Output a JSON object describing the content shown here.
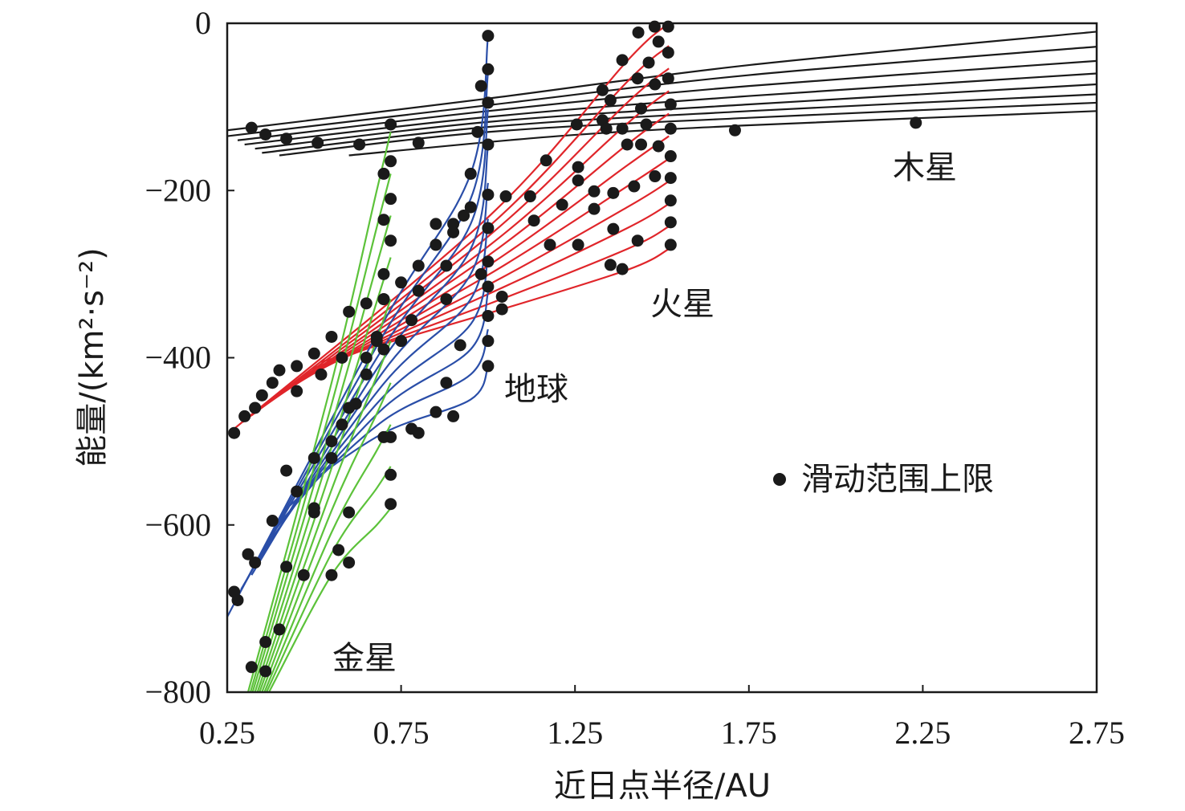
{
  "chart_data": {
    "type": "line",
    "title": "",
    "xlabel": "近日点半径/AU",
    "ylabel": "能量/(km²·s⁻²)",
    "xlim": [
      0.25,
      2.75
    ],
    "ylim": [
      -800,
      0
    ],
    "xticks": [
      0.25,
      0.75,
      1.25,
      1.75,
      2.25,
      2.75
    ],
    "xtick_labels": [
      "0.25",
      "0.75",
      "1.25",
      "1.75",
      "2.25",
      "2.75"
    ],
    "yticks": [
      0,
      -200,
      -400,
      -600,
      -800
    ],
    "ytick_labels": [
      "0",
      "−200",
      "−400",
      "−600",
      "−800"
    ],
    "grid": false,
    "legend": {
      "label": "滑动范围上限",
      "placement": "right",
      "marker_color": "#1a1a1a"
    },
    "annotations": {
      "jupiter": "木星",
      "mars": "火星",
      "earth": "地球",
      "venus": "金星"
    },
    "series": [
      {
        "name": "木星",
        "color": "#1a1a1a",
        "curves": [
          [
            [
              0.25,
              -128
            ],
            [
              1.0,
              -90
            ],
            [
              1.75,
              -50
            ],
            [
              2.75,
              -10
            ]
          ],
          [
            [
              0.25,
              -135
            ],
            [
              1.0,
              -98
            ],
            [
              1.75,
              -62
            ],
            [
              2.75,
              -28
            ]
          ],
          [
            [
              0.28,
              -140
            ],
            [
              1.0,
              -105
            ],
            [
              1.75,
              -75
            ],
            [
              2.75,
              -45
            ]
          ],
          [
            [
              0.3,
              -145
            ],
            [
              1.0,
              -112
            ],
            [
              1.75,
              -87
            ],
            [
              2.75,
              -60
            ]
          ],
          [
            [
              0.33,
              -150
            ],
            [
              1.0,
              -118
            ],
            [
              1.75,
              -97
            ],
            [
              2.75,
              -73
            ]
          ],
          [
            [
              0.35,
              -155
            ],
            [
              1.0,
              -124
            ],
            [
              1.75,
              -105
            ],
            [
              2.75,
              -85
            ]
          ],
          [
            [
              0.4,
              -158
            ],
            [
              1.0,
              -130
            ],
            [
              1.75,
              -113
            ],
            [
              2.75,
              -95
            ]
          ],
          [
            [
              0.6,
              -158
            ],
            [
              1.2,
              -135
            ],
            [
              1.75,
              -122
            ],
            [
              2.75,
              -105
            ]
          ]
        ]
      },
      {
        "name": "火星",
        "color": "#e0252a",
        "curves": [
          [
            [
              0.27,
              -485
            ],
            [
              1.0,
              -232
            ],
            [
              1.4,
              -45
            ],
            [
              1.52,
              0
            ]
          ],
          [
            [
              0.295,
              -477
            ],
            [
              1.0,
              -244
            ],
            [
              1.4,
              -70
            ],
            [
              1.52,
              -27
            ]
          ],
          [
            [
              0.32,
              -469
            ],
            [
              1.0,
              -255
            ],
            [
              1.4,
              -95
            ],
            [
              1.52,
              -54
            ]
          ],
          [
            [
              0.345,
              -461
            ],
            [
              1.0,
              -267
            ],
            [
              1.4,
              -120
            ],
            [
              1.52,
              -81
            ]
          ],
          [
            [
              0.37,
              -453
            ],
            [
              1.0,
              -278
            ],
            [
              1.4,
              -145
            ],
            [
              1.52,
              -108
            ]
          ],
          [
            [
              0.395,
              -445
            ],
            [
              1.0,
              -290
            ],
            [
              1.4,
              -170
            ],
            [
              1.52,
              -135
            ]
          ],
          [
            [
              0.42,
              -437
            ],
            [
              1.0,
              -301
            ],
            [
              1.4,
              -195
            ],
            [
              1.52,
              -162
            ]
          ],
          [
            [
              0.445,
              -429
            ],
            [
              1.0,
              -313
            ],
            [
              1.4,
              -220
            ],
            [
              1.52,
              -189
            ]
          ],
          [
            [
              0.47,
              -421
            ],
            [
              1.0,
              -324
            ],
            [
              1.4,
              -245
            ],
            [
              1.52,
              -216
            ]
          ],
          [
            [
              0.495,
              -413
            ],
            [
              1.0,
              -336
            ],
            [
              1.4,
              -270
            ],
            [
              1.52,
              -243
            ]
          ],
          [
            [
              0.52,
              -405
            ],
            [
              1.0,
              -347
            ],
            [
              1.4,
              -295
            ],
            [
              1.52,
              -270
            ]
          ]
        ]
      },
      {
        "name": "地球",
        "color": "#2a4ea8",
        "curves": [
          [
            [
              0.25,
              -710
            ],
            [
              0.7,
              -357
            ],
            [
              0.95,
              -180
            ],
            [
              1.0,
              -15
            ]
          ],
          [
            [
              0.27,
              -693
            ],
            [
              0.7,
              -372
            ],
            [
              0.95,
              -210
            ],
            [
              1.0,
              -59
            ]
          ],
          [
            [
              0.29,
              -677
            ],
            [
              0.7,
              -387
            ],
            [
              0.95,
              -240
            ],
            [
              1.0,
              -103
            ]
          ],
          [
            [
              0.32,
              -660
            ],
            [
              0.7,
              -401
            ],
            [
              0.95,
              -270
            ],
            [
              1.0,
              -147
            ]
          ],
          [
            [
              0.34,
              -643
            ],
            [
              0.7,
              -416
            ],
            [
              0.95,
              -300
            ],
            [
              1.0,
              -191
            ]
          ],
          [
            [
              0.36,
              -627
            ],
            [
              0.7,
              -431
            ],
            [
              0.95,
              -330
            ],
            [
              1.0,
              -234
            ]
          ],
          [
            [
              0.38,
              -610
            ],
            [
              0.7,
              -446
            ],
            [
              0.95,
              -360
            ],
            [
              1.0,
              -278
            ]
          ],
          [
            [
              0.41,
              -593
            ],
            [
              0.7,
              -460
            ],
            [
              0.95,
              -390
            ],
            [
              1.0,
              -322
            ]
          ],
          [
            [
              0.43,
              -577
            ],
            [
              0.7,
              -475
            ],
            [
              0.95,
              -420
            ],
            [
              1.0,
              -366
            ]
          ],
          [
            [
              0.45,
              -560
            ],
            [
              0.7,
              -490
            ],
            [
              0.95,
              -450
            ],
            [
              1.0,
              -410
            ]
          ]
        ]
      },
      {
        "name": "金星",
        "color": "#5cc23a",
        "curves": [
          [
            [
              0.31,
              -800
            ],
            [
              0.55,
              -430
            ],
            [
              0.68,
              -200
            ],
            [
              0.72,
              -130
            ]
          ],
          [
            [
              0.317,
              -800
            ],
            [
              0.55,
              -456
            ],
            [
              0.68,
              -244
            ],
            [
              0.72,
              -180
            ]
          ],
          [
            [
              0.323,
              -800
            ],
            [
              0.55,
              -481
            ],
            [
              0.68,
              -289
            ],
            [
              0.72,
              -230
            ]
          ],
          [
            [
              0.33,
              -800
            ],
            [
              0.55,
              -507
            ],
            [
              0.68,
              -333
            ],
            [
              0.72,
              -280
            ]
          ],
          [
            [
              0.337,
              -800
            ],
            [
              0.55,
              -532
            ],
            [
              0.68,
              -378
            ],
            [
              0.72,
              -330
            ]
          ],
          [
            [
              0.343,
              -800
            ],
            [
              0.55,
              -558
            ],
            [
              0.68,
              -422
            ],
            [
              0.72,
              -380
            ]
          ],
          [
            [
              0.35,
              -800
            ],
            [
              0.55,
              -583
            ],
            [
              0.68,
              -467
            ],
            [
              0.72,
              -430
            ]
          ],
          [
            [
              0.357,
              -800
            ],
            [
              0.55,
              -609
            ],
            [
              0.68,
              -511
            ],
            [
              0.72,
              -480
            ]
          ],
          [
            [
              0.363,
              -800
            ],
            [
              0.55,
              -634
            ],
            [
              0.68,
              -556
            ],
            [
              0.72,
              -530
            ]
          ],
          [
            [
              0.37,
              -800
            ],
            [
              0.55,
              -660
            ],
            [
              0.68,
              -600
            ],
            [
              0.72,
              -580
            ]
          ]
        ]
      }
    ],
    "points": [
      [
        0.32,
        -125
      ],
      [
        0.36,
        -133
      ],
      [
        0.42,
        -138
      ],
      [
        0.51,
        -143
      ],
      [
        0.63,
        -145
      ],
      [
        0.72,
        -121
      ],
      [
        0.8,
        -143
      ],
      [
        1.71,
        -128
      ],
      [
        2.23,
        -119
      ],
      [
        1.479,
        -4
      ],
      [
        1.518,
        -4
      ],
      [
        1.49,
        -22
      ],
      [
        1.518,
        -35
      ],
      [
        1.432,
        -11
      ],
      [
        1.386,
        -44
      ],
      [
        1.462,
        -47
      ],
      [
        1.518,
        -66
      ],
      [
        1.329,
        -80
      ],
      [
        1.43,
        -66
      ],
      [
        1.48,
        -73
      ],
      [
        1.352,
        -92
      ],
      [
        1.44,
        -102
      ],
      [
        1.525,
        -97
      ],
      [
        1.255,
        -121
      ],
      [
        1.329,
        -116
      ],
      [
        1.386,
        -126
      ],
      [
        1.455,
        -121
      ],
      [
        1.525,
        -126
      ],
      [
        1.167,
        -164
      ],
      [
        1.259,
        -172
      ],
      [
        1.34,
        -126
      ],
      [
        1.4,
        -145
      ],
      [
        1.44,
        -145
      ],
      [
        1.49,
        -147
      ],
      [
        1.525,
        -159
      ],
      [
        1.259,
        -188
      ],
      [
        1.305,
        -201
      ],
      [
        1.36,
        -203
      ],
      [
        1.42,
        -195
      ],
      [
        1.48,
        -183
      ],
      [
        1.525,
        -185
      ],
      [
        1.121,
        -207
      ],
      [
        1.213,
        -217
      ],
      [
        1.305,
        -222
      ],
      [
        1.36,
        -246
      ],
      [
        1.43,
        -260
      ],
      [
        1.525,
        -212
      ],
      [
        1.525,
        -238
      ],
      [
        1.051,
        -207
      ],
      [
        1.132,
        -236
      ],
      [
        1.178,
        -265
      ],
      [
        1.259,
        -265
      ],
      [
        1.352,
        -289
      ],
      [
        1.386,
        -294
      ],
      [
        1.525,
        -265
      ],
      [
        1.04,
        -327
      ],
      [
        1.04,
        -342
      ],
      [
        0.27,
        -490
      ],
      [
        0.3,
        -470
      ],
      [
        0.33,
        -460
      ],
      [
        0.35,
        -445
      ],
      [
        0.38,
        -430
      ],
      [
        0.4,
        -415
      ],
      [
        0.45,
        -410
      ],
      [
        0.5,
        -395
      ],
      [
        0.55,
        -375
      ],
      [
        0.6,
        -345
      ],
      [
        0.65,
        -335
      ],
      [
        0.7,
        -330
      ],
      [
        0.75,
        -310
      ],
      [
        0.8,
        -290
      ],
      [
        0.85,
        -265
      ],
      [
        0.9,
        -240
      ],
      [
        0.95,
        -220
      ],
      [
        0.45,
        -440
      ],
      [
        0.52,
        -420
      ],
      [
        0.58,
        -400
      ],
      [
        0.68,
        -380
      ],
      [
        0.78,
        -355
      ],
      [
        0.88,
        -330
      ],
      [
        0.98,
        -300
      ],
      [
        0.27,
        -680
      ],
      [
        0.28,
        -690
      ],
      [
        0.31,
        -635
      ],
      [
        0.33,
        -645
      ],
      [
        0.38,
        -595
      ],
      [
        0.42,
        -535
      ],
      [
        0.45,
        -560
      ],
      [
        0.5,
        -520
      ],
      [
        0.5,
        -580
      ],
      [
        0.55,
        -500
      ],
      [
        0.6,
        -460
      ],
      [
        0.65,
        -420
      ],
      [
        0.7,
        -390
      ],
      [
        0.75,
        -380
      ],
      [
        0.8,
        -320
      ],
      [
        0.85,
        -240
      ],
      [
        0.88,
        -290
      ],
      [
        0.9,
        -250
      ],
      [
        0.93,
        -230
      ],
      [
        0.95,
        -180
      ],
      [
        0.97,
        -130
      ],
      [
        0.98,
        -75
      ],
      [
        1.0,
        -15
      ],
      [
        1.0,
        -55
      ],
      [
        1.0,
        -95
      ],
      [
        1.0,
        -145
      ],
      [
        1.0,
        -205
      ],
      [
        1.0,
        -245
      ],
      [
        1.0,
        -285
      ],
      [
        1.0,
        -315
      ],
      [
        1.0,
        -350
      ],
      [
        1.0,
        -380
      ],
      [
        1.0,
        -410
      ],
      [
        0.88,
        -430
      ],
      [
        0.85,
        -465
      ],
      [
        0.8,
        -490
      ],
      [
        0.78,
        -485
      ],
      [
        0.9,
        -470
      ],
      [
        0.92,
        -385
      ],
      [
        0.72,
        -495
      ],
      [
        0.32,
        -770
      ],
      [
        0.36,
        -775
      ],
      [
        0.36,
        -740
      ],
      [
        0.4,
        -725
      ],
      [
        0.42,
        -650
      ],
      [
        0.47,
        -660
      ],
      [
        0.5,
        -585
      ],
      [
        0.55,
        -660
      ],
      [
        0.57,
        -630
      ],
      [
        0.6,
        -645
      ],
      [
        0.6,
        -585
      ],
      [
        0.55,
        -520
      ],
      [
        0.58,
        -480
      ],
      [
        0.62,
        -455
      ],
      [
        0.65,
        -400
      ],
      [
        0.68,
        -375
      ],
      [
        0.7,
        -330
      ],
      [
        0.7,
        -300
      ],
      [
        0.72,
        -260
      ],
      [
        0.72,
        -210
      ],
      [
        0.7,
        -180
      ],
      [
        0.72,
        -165
      ],
      [
        0.7,
        -235
      ],
      [
        0.72,
        -575
      ],
      [
        0.72,
        -540
      ],
      [
        0.7,
        -495
      ]
    ]
  }
}
